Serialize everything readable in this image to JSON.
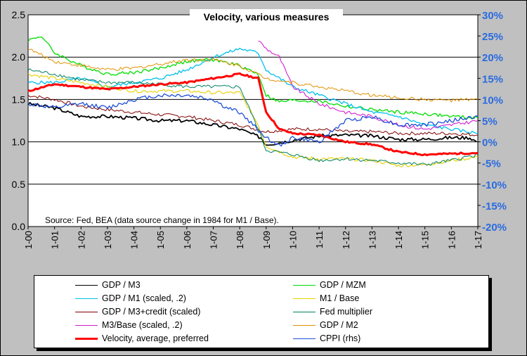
{
  "chart_data": {
    "type": "line",
    "title": "Velocity, various measures",
    "annotation": "Source: Fed, BEA  (data source change in 1984 for M1 / Base).",
    "x_ticks": [
      "1-00",
      "1-01",
      "1-02",
      "1-03",
      "1-04",
      "1-05",
      "1-06",
      "1-07",
      "1-08",
      "1-09",
      "1-10",
      "1-11",
      "1-12",
      "1-13",
      "1-14",
      "1-15",
      "1-16",
      "1-17"
    ],
    "xlim": [
      2000,
      2017
    ],
    "ylim_left": [
      0,
      2.5
    ],
    "y_ticks_left": [
      "0.0",
      "0.5",
      "1.0",
      "1.5",
      "2.0",
      "2.5"
    ],
    "ylim_right": [
      -20,
      30
    ],
    "y_ticks_right": [
      "30%",
      "25%",
      "20%",
      "15%",
      "10%",
      "5%",
      "0%",
      "-5%",
      "-10%",
      "-15%",
      "-20%"
    ],
    "grid": "horizontal major gridlines",
    "legend_position": "bottom",
    "series": [
      {
        "name": "GDP / M3",
        "color": "#000000",
        "width": 1.8,
        "axis": "left",
        "points": [
          [
            2000,
            1.45
          ],
          [
            2001,
            1.4
          ],
          [
            2002,
            1.3
          ],
          [
            2003,
            1.3
          ],
          [
            2004,
            1.28
          ],
          [
            2005,
            1.25
          ],
          [
            2006,
            1.25
          ],
          [
            2007,
            1.2
          ],
          [
            2008,
            1.15
          ],
          [
            2008.8,
            1.05
          ],
          [
            2009,
            0.97
          ],
          [
            2009.5,
            0.99
          ],
          [
            2010,
            1.02
          ],
          [
            2011,
            1.07
          ],
          [
            2012,
            1.08
          ],
          [
            2013,
            1.07
          ],
          [
            2014,
            1.03
          ],
          [
            2015,
            1.03
          ],
          [
            2016,
            1.05
          ],
          [
            2016.7,
            1.05
          ],
          [
            2016.95,
            1.0
          ]
        ]
      },
      {
        "name": "GDP / MZM",
        "color": "#00dd00",
        "width": 1.3,
        "axis": "left",
        "points": [
          [
            2000,
            2.2
          ],
          [
            2000.5,
            2.25
          ],
          [
            2001,
            2.05
          ],
          [
            2002,
            1.9
          ],
          [
            2003,
            1.8
          ],
          [
            2004,
            1.82
          ],
          [
            2005,
            1.87
          ],
          [
            2006,
            1.95
          ],
          [
            2007,
            1.97
          ],
          [
            2008,
            1.9
          ],
          [
            2008.7,
            1.8
          ],
          [
            2009,
            1.55
          ],
          [
            2009.5,
            1.47
          ],
          [
            2010,
            1.49
          ],
          [
            2011,
            1.48
          ],
          [
            2012,
            1.42
          ],
          [
            2013,
            1.38
          ],
          [
            2014,
            1.35
          ],
          [
            2015,
            1.33
          ],
          [
            2016,
            1.3
          ],
          [
            2017,
            1.28
          ]
        ]
      },
      {
        "name": "GDP / M1 (scaled, .2)",
        "color": "#00c0ee",
        "width": 1.3,
        "axis": "left",
        "points": [
          [
            2000,
            1.7
          ],
          [
            2001,
            1.7
          ],
          [
            2002,
            1.75
          ],
          [
            2003,
            1.65
          ],
          [
            2004,
            1.7
          ],
          [
            2005,
            1.75
          ],
          [
            2006,
            1.85
          ],
          [
            2007,
            2.0
          ],
          [
            2007.5,
            2.05
          ],
          [
            2008,
            2.1
          ],
          [
            2008.7,
            2.05
          ],
          [
            2009,
            1.85
          ],
          [
            2010,
            1.65
          ],
          [
            2011,
            1.55
          ],
          [
            2012,
            1.45
          ],
          [
            2013,
            1.35
          ],
          [
            2014,
            1.3
          ],
          [
            2015,
            1.2
          ],
          [
            2016,
            1.15
          ],
          [
            2017,
            1.1
          ]
        ]
      },
      {
        "name": "M1 / Base",
        "color": "#e8d000",
        "width": 1.1,
        "axis": "left",
        "points": [
          [
            2000,
            1.8
          ],
          [
            2001,
            1.75
          ],
          [
            2002,
            1.7
          ],
          [
            2003,
            1.65
          ],
          [
            2004,
            1.6
          ],
          [
            2005,
            1.6
          ],
          [
            2006,
            1.6
          ],
          [
            2007,
            1.58
          ],
          [
            2008,
            1.58
          ],
          [
            2008.7,
            1.2
          ],
          [
            2009,
            0.95
          ],
          [
            2010,
            0.82
          ],
          [
            2011,
            0.8
          ],
          [
            2012,
            0.8
          ],
          [
            2013,
            0.78
          ],
          [
            2014,
            0.72
          ],
          [
            2015,
            0.73
          ],
          [
            2016,
            0.78
          ],
          [
            2017,
            0.82
          ]
        ]
      },
      {
        "name": "GDP / M3+credit (scaled)",
        "color": "#800000",
        "width": 1.0,
        "axis": "left",
        "points": [
          [
            2000,
            1.55
          ],
          [
            2001,
            1.5
          ],
          [
            2002,
            1.42
          ],
          [
            2003,
            1.38
          ],
          [
            2004,
            1.35
          ],
          [
            2005,
            1.32
          ],
          [
            2006,
            1.3
          ],
          [
            2007,
            1.25
          ],
          [
            2008,
            1.2
          ],
          [
            2009,
            1.12
          ],
          [
            2010,
            1.15
          ],
          [
            2011,
            1.15
          ],
          [
            2012,
            1.12
          ],
          [
            2013,
            1.12
          ],
          [
            2014,
            1.1
          ],
          [
            2015,
            1.1
          ],
          [
            2016,
            1.1
          ],
          [
            2017,
            1.08
          ]
        ]
      },
      {
        "name": "Fed multiplier",
        "color": "#008060",
        "width": 1.0,
        "axis": "left",
        "points": [
          [
            2000,
            1.85
          ],
          [
            2001,
            1.8
          ],
          [
            2002,
            1.73
          ],
          [
            2003,
            1.7
          ],
          [
            2004,
            1.7
          ],
          [
            2005,
            1.68
          ],
          [
            2006,
            1.65
          ],
          [
            2007,
            1.65
          ],
          [
            2008,
            1.65
          ],
          [
            2008.7,
            1.15
          ],
          [
            2009,
            0.9
          ],
          [
            2010,
            0.85
          ],
          [
            2011,
            0.78
          ],
          [
            2012,
            0.8
          ],
          [
            2013,
            0.78
          ],
          [
            2014,
            0.75
          ],
          [
            2015,
            0.73
          ],
          [
            2016,
            0.78
          ],
          [
            2017,
            0.85
          ]
        ]
      },
      {
        "name": "M3/Base (scaled, .2)",
        "color": "#d020d0",
        "width": 1.1,
        "axis": "left",
        "points": [
          [
            2008.7,
            2.2
          ],
          [
            2009,
            2.1
          ],
          [
            2009.5,
            2.0
          ],
          [
            2010,
            1.65
          ],
          [
            2011,
            1.45
          ],
          [
            2012,
            1.35
          ],
          [
            2013,
            1.3
          ],
          [
            2014,
            1.2
          ],
          [
            2015,
            1.15
          ],
          [
            2016,
            1.2
          ],
          [
            2017,
            1.25
          ]
        ]
      },
      {
        "name": "GDP / M2",
        "color": "#e09000",
        "width": 1.0,
        "axis": "left",
        "points": [
          [
            2000,
            2.1
          ],
          [
            2001,
            1.95
          ],
          [
            2002,
            1.9
          ],
          [
            2003,
            1.85
          ],
          [
            2004,
            1.87
          ],
          [
            2005,
            1.92
          ],
          [
            2006,
            1.97
          ],
          [
            2007,
            1.97
          ],
          [
            2008,
            1.9
          ],
          [
            2009,
            1.75
          ],
          [
            2010,
            1.7
          ],
          [
            2011,
            1.65
          ],
          [
            2012,
            1.6
          ],
          [
            2013,
            1.55
          ],
          [
            2014,
            1.52
          ],
          [
            2015,
            1.5
          ],
          [
            2016,
            1.49
          ],
          [
            2017,
            1.5
          ]
        ]
      },
      {
        "name": "Velocity, average, preferred",
        "color": "#ff0000",
        "width": 3.0,
        "axis": "left",
        "points": [
          [
            2000,
            1.6
          ],
          [
            2001,
            1.68
          ],
          [
            2002,
            1.65
          ],
          [
            2003,
            1.62
          ],
          [
            2004,
            1.65
          ],
          [
            2005,
            1.68
          ],
          [
            2006,
            1.7
          ],
          [
            2007,
            1.75
          ],
          [
            2008,
            1.8
          ],
          [
            2008.7,
            1.75
          ],
          [
            2009,
            1.35
          ],
          [
            2009.5,
            1.15
          ],
          [
            2010,
            1.1
          ],
          [
            2011,
            1.08
          ],
          [
            2012,
            1.0
          ],
          [
            2013,
            0.97
          ],
          [
            2014,
            0.88
          ],
          [
            2015,
            0.85
          ],
          [
            2016,
            0.86
          ],
          [
            2017,
            0.87
          ]
        ]
      },
      {
        "name": "CPPI (rhs)",
        "color": "#1f4fd8",
        "width": 1.3,
        "axis": "right",
        "points": [
          [
            2000,
            9
          ],
          [
            2001,
            8
          ],
          [
            2002,
            9
          ],
          [
            2003,
            8
          ],
          [
            2004,
            10
          ],
          [
            2005,
            11
          ],
          [
            2006,
            11
          ],
          [
            2007,
            10
          ],
          [
            2007.5,
            8
          ],
          [
            2008,
            7
          ],
          [
            2008.5,
            4
          ],
          [
            2009,
            1
          ],
          [
            2009.5,
            -1
          ],
          [
            2010,
            1
          ],
          [
            2011,
            0
          ],
          [
            2012,
            5
          ],
          [
            2013,
            6
          ],
          [
            2014,
            4
          ],
          [
            2015,
            4
          ],
          [
            2016,
            5
          ],
          [
            2017,
            6
          ]
        ]
      }
    ]
  }
}
